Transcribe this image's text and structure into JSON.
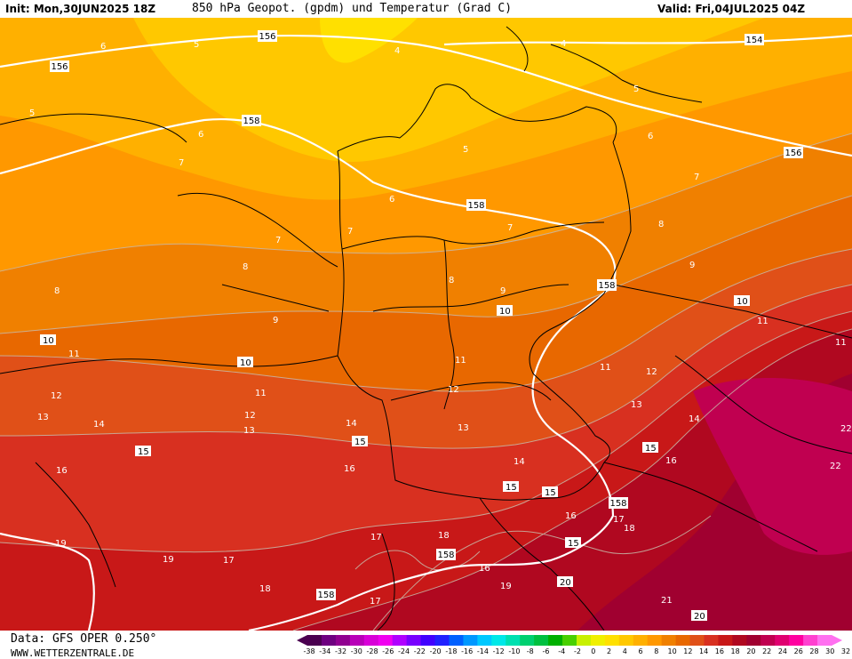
{
  "header": {
    "init": "Init: Mon,30JUN2025 18Z",
    "title": "850 hPa Geopot. (gpdm) und Temperatur (Grad C)",
    "valid": "Valid: Fri,04JUL2025 04Z"
  },
  "footer": {
    "source": "Data: GFS OPER 0.250°",
    "site": "WWW.WETTERZENTRALE.DE"
  },
  "legend": {
    "colors": [
      "#4b0050",
      "#6e0080",
      "#900090",
      "#b800b8",
      "#d800d8",
      "#f000f0",
      "#b000ff",
      "#7800ff",
      "#4000ff",
      "#2020ff",
      "#0060ff",
      "#0098ff",
      "#00c8ff",
      "#00e8e8",
      "#00e0b0",
      "#00d070",
      "#00c040",
      "#00b000",
      "#48d000",
      "#c8f000",
      "#f0f000",
      "#ffe000",
      "#ffc800",
      "#ffb000",
      "#ff9800",
      "#f08000",
      "#e86800",
      "#e05018",
      "#d83020",
      "#c81818",
      "#b00820",
      "#a00030",
      "#c00050",
      "#e00070",
      "#ff00a0",
      "#ff40d0",
      "#ff70f0"
    ],
    "ticks": [
      "-38",
      "-34",
      "-32",
      "-30",
      "-28",
      "-26",
      "-24",
      "-22",
      "-20",
      "-18",
      "-16",
      "-14",
      "-12",
      "-10",
      "-8",
      "-6",
      "-4",
      "-2",
      "0",
      "2",
      "4",
      "6",
      "8",
      "10",
      "12",
      "14",
      "16",
      "18",
      "20",
      "22",
      "24",
      "26",
      "28",
      "30",
      "32"
    ]
  },
  "map": {
    "geopotential_labels": [
      "156",
      "156",
      "158",
      "156",
      "154",
      "158",
      "158",
      "158",
      "158",
      "158"
    ],
    "temperature_labels": [
      "4",
      "4",
      "5",
      "5",
      "5",
      "5",
      "6",
      "6",
      "6",
      "6",
      "7",
      "7",
      "7",
      "7",
      "7",
      "8",
      "8",
      "8",
      "8",
      "9",
      "9",
      "9",
      "10",
      "10",
      "10",
      "10",
      "11",
      "11",
      "11",
      "11",
      "11",
      "11",
      "12",
      "12",
      "12",
      "12",
      "13",
      "13",
      "13",
      "13",
      "14",
      "14",
      "14",
      "14",
      "15",
      "15",
      "15",
      "15",
      "15",
      "15",
      "16",
      "16",
      "16",
      "16",
      "16",
      "17",
      "17",
      "17",
      "17",
      "18",
      "18",
      "18",
      "19",
      "19",
      "19",
      "20",
      "20",
      "21",
      "22",
      "22"
    ]
  }
}
